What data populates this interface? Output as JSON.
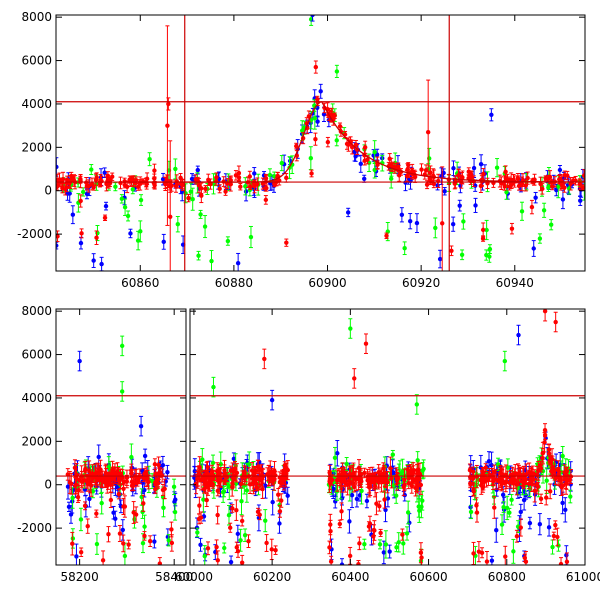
{
  "chart_data": [
    {
      "type": "scatter",
      "title": "",
      "xlabel": "",
      "ylabel": "",
      "xlim": [
        60842,
        60955
      ],
      "ylim": [
        -3700,
        8100
      ],
      "x_ticks": [
        60860,
        60880,
        60900,
        60920,
        60940
      ],
      "y_ticks": [
        -2000,
        0,
        2000,
        4000,
        6000,
        8000
      ],
      "series_colors": {
        "blue": "#0000ff",
        "green": "#00ff00",
        "red": "#ff0000"
      },
      "reference_lines": {
        "horizontal": [
          400,
          4100
        ],
        "vertical": [
          60869.5,
          60926
        ]
      },
      "fit_curve": {
        "type": "asymmetric-peak",
        "baseline": 400,
        "peak_x": 60898.8,
        "peak_y": 4100,
        "rise_sigma": 3.8,
        "decay_tau": 8.5
      },
      "scatter_series": [
        {
          "name": "blue",
          "color": "#0000ff",
          "seed": 11,
          "n": 110,
          "scatter": 700,
          "outlier_frac": 0.18,
          "err": 250
        },
        {
          "name": "green",
          "color": "#00ff00",
          "seed": 23,
          "n": 95,
          "scatter": 800,
          "outlier_frac": 0.22,
          "err": 300
        },
        {
          "name": "red",
          "color": "#ff0000",
          "seed": 37,
          "n": 260,
          "scatter": 350,
          "outlier_frac": 0.08,
          "err": 180
        }
      ],
      "highlight_points": [
        {
          "series": "green",
          "x": 60896.5,
          "y": 7900
        },
        {
          "series": "blue",
          "x": 60896.8,
          "y": 8100
        },
        {
          "series": "red",
          "x": 60897.5,
          "y": 5700
        },
        {
          "series": "green",
          "x": 60902,
          "y": 5500
        },
        {
          "series": "blue",
          "x": 60935,
          "y": 3500
        },
        {
          "series": "red",
          "x": 60866,
          "y": 4000
        }
      ]
    },
    {
      "type": "scatter",
      "title": "",
      "xlabel": "",
      "ylabel": "",
      "segments": [
        {
          "xlim": [
            58150,
            58425
          ],
          "x_ticks": [
            58200,
            58400
          ]
        },
        {
          "xlim": [
            59990,
            61000
          ],
          "x_ticks": [
            60000,
            60200,
            60400,
            60600,
            60800,
            61000
          ]
        }
      ],
      "ylim": [
        -3700,
        8100
      ],
      "y_ticks": [
        -2000,
        0,
        2000,
        4000,
        6000,
        8000
      ],
      "reference_lines": {
        "horizontal": [
          400,
          4100
        ]
      },
      "observing_seasons": [
        [
          58175,
          58405
        ],
        [
          60000,
          60245
        ],
        [
          60345,
          60590
        ],
        [
          60705,
          60965
        ]
      ],
      "scatter_series": [
        {
          "name": "blue",
          "color": "#0000ff",
          "seed": 41,
          "n": 210,
          "scatter": 900,
          "outlier_frac": 0.2,
          "err": 300
        },
        {
          "name": "green",
          "color": "#00ff00",
          "seed": 53,
          "n": 170,
          "scatter": 1000,
          "outlier_frac": 0.22,
          "err": 320
        },
        {
          "name": "red",
          "color": "#ff0000",
          "seed": 67,
          "n": 520,
          "scatter": 450,
          "outlier_frac": 0.12,
          "err": 260
        }
      ],
      "highlight_points": [
        {
          "series": "blue",
          "x": 58200,
          "y": 5700
        },
        {
          "series": "green",
          "x": 58290,
          "y": 6400
        },
        {
          "series": "green",
          "x": 58290,
          "y": 4300
        },
        {
          "series": "blue",
          "x": 58330,
          "y": 2700
        },
        {
          "series": "green",
          "x": 60050,
          "y": 4500
        },
        {
          "series": "red",
          "x": 60180,
          "y": 5800
        },
        {
          "series": "blue",
          "x": 60200,
          "y": 3900
        },
        {
          "series": "green",
          "x": 60400,
          "y": 7200
        },
        {
          "series": "red",
          "x": 60440,
          "y": 6500
        },
        {
          "series": "red",
          "x": 60410,
          "y": 4900
        },
        {
          "series": "green",
          "x": 60570,
          "y": 3700
        },
        {
          "series": "blue",
          "x": 60830,
          "y": 6900
        },
        {
          "series": "green",
          "x": 60795,
          "y": 5700
        },
        {
          "series": "red",
          "x": 60898,
          "y": 8000
        },
        {
          "series": "red",
          "x": 60925,
          "y": 7500
        }
      ]
    }
  ]
}
